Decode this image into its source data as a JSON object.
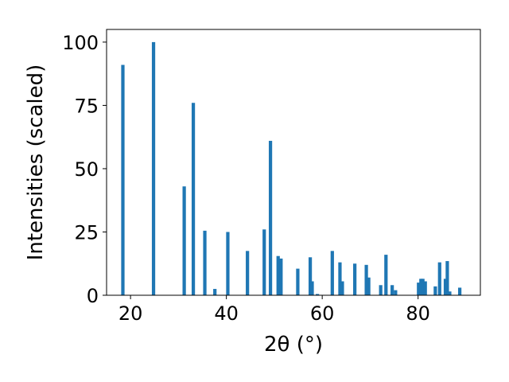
{
  "chart_data": {
    "type": "bar",
    "xlabel": "2θ (°)",
    "ylabel": "Intensities (scaled)",
    "xlim": [
      15,
      93
    ],
    "ylim": [
      0,
      105
    ],
    "x_ticks": [
      20,
      40,
      60,
      80
    ],
    "y_ticks": [
      0,
      25,
      50,
      75,
      100
    ],
    "grid": false,
    "bar_color": "#1f77b4",
    "bar_width": 0.7,
    "series": [
      {
        "x": [
          18.4,
          24.8,
          31.2,
          33.1,
          35.5,
          37.6,
          40.3,
          44.4,
          47.9,
          49.2,
          50.8,
          51.4,
          54.9,
          57.5,
          57.9,
          59.0,
          62.1,
          63.7,
          64.2,
          66.8,
          69.2,
          69.7,
          72.2,
          73.3,
          74.6,
          75.3,
          80.1,
          80.6,
          81.0,
          81.5,
          83.6,
          84.5,
          85.7,
          86.1,
          86.6,
          88.7
        ],
        "values": [
          91,
          100,
          43,
          76,
          25.5,
          2.5,
          25,
          17.5,
          26,
          61,
          15.5,
          14.5,
          10.5,
          15,
          5.5,
          0.5,
          17.5,
          13,
          5.5,
          12.5,
          12,
          7,
          4,
          16,
          4,
          2,
          5,
          6.5,
          6.5,
          5.5,
          3.5,
          13,
          6.5,
          13.5,
          1.5,
          3
        ]
      }
    ]
  }
}
